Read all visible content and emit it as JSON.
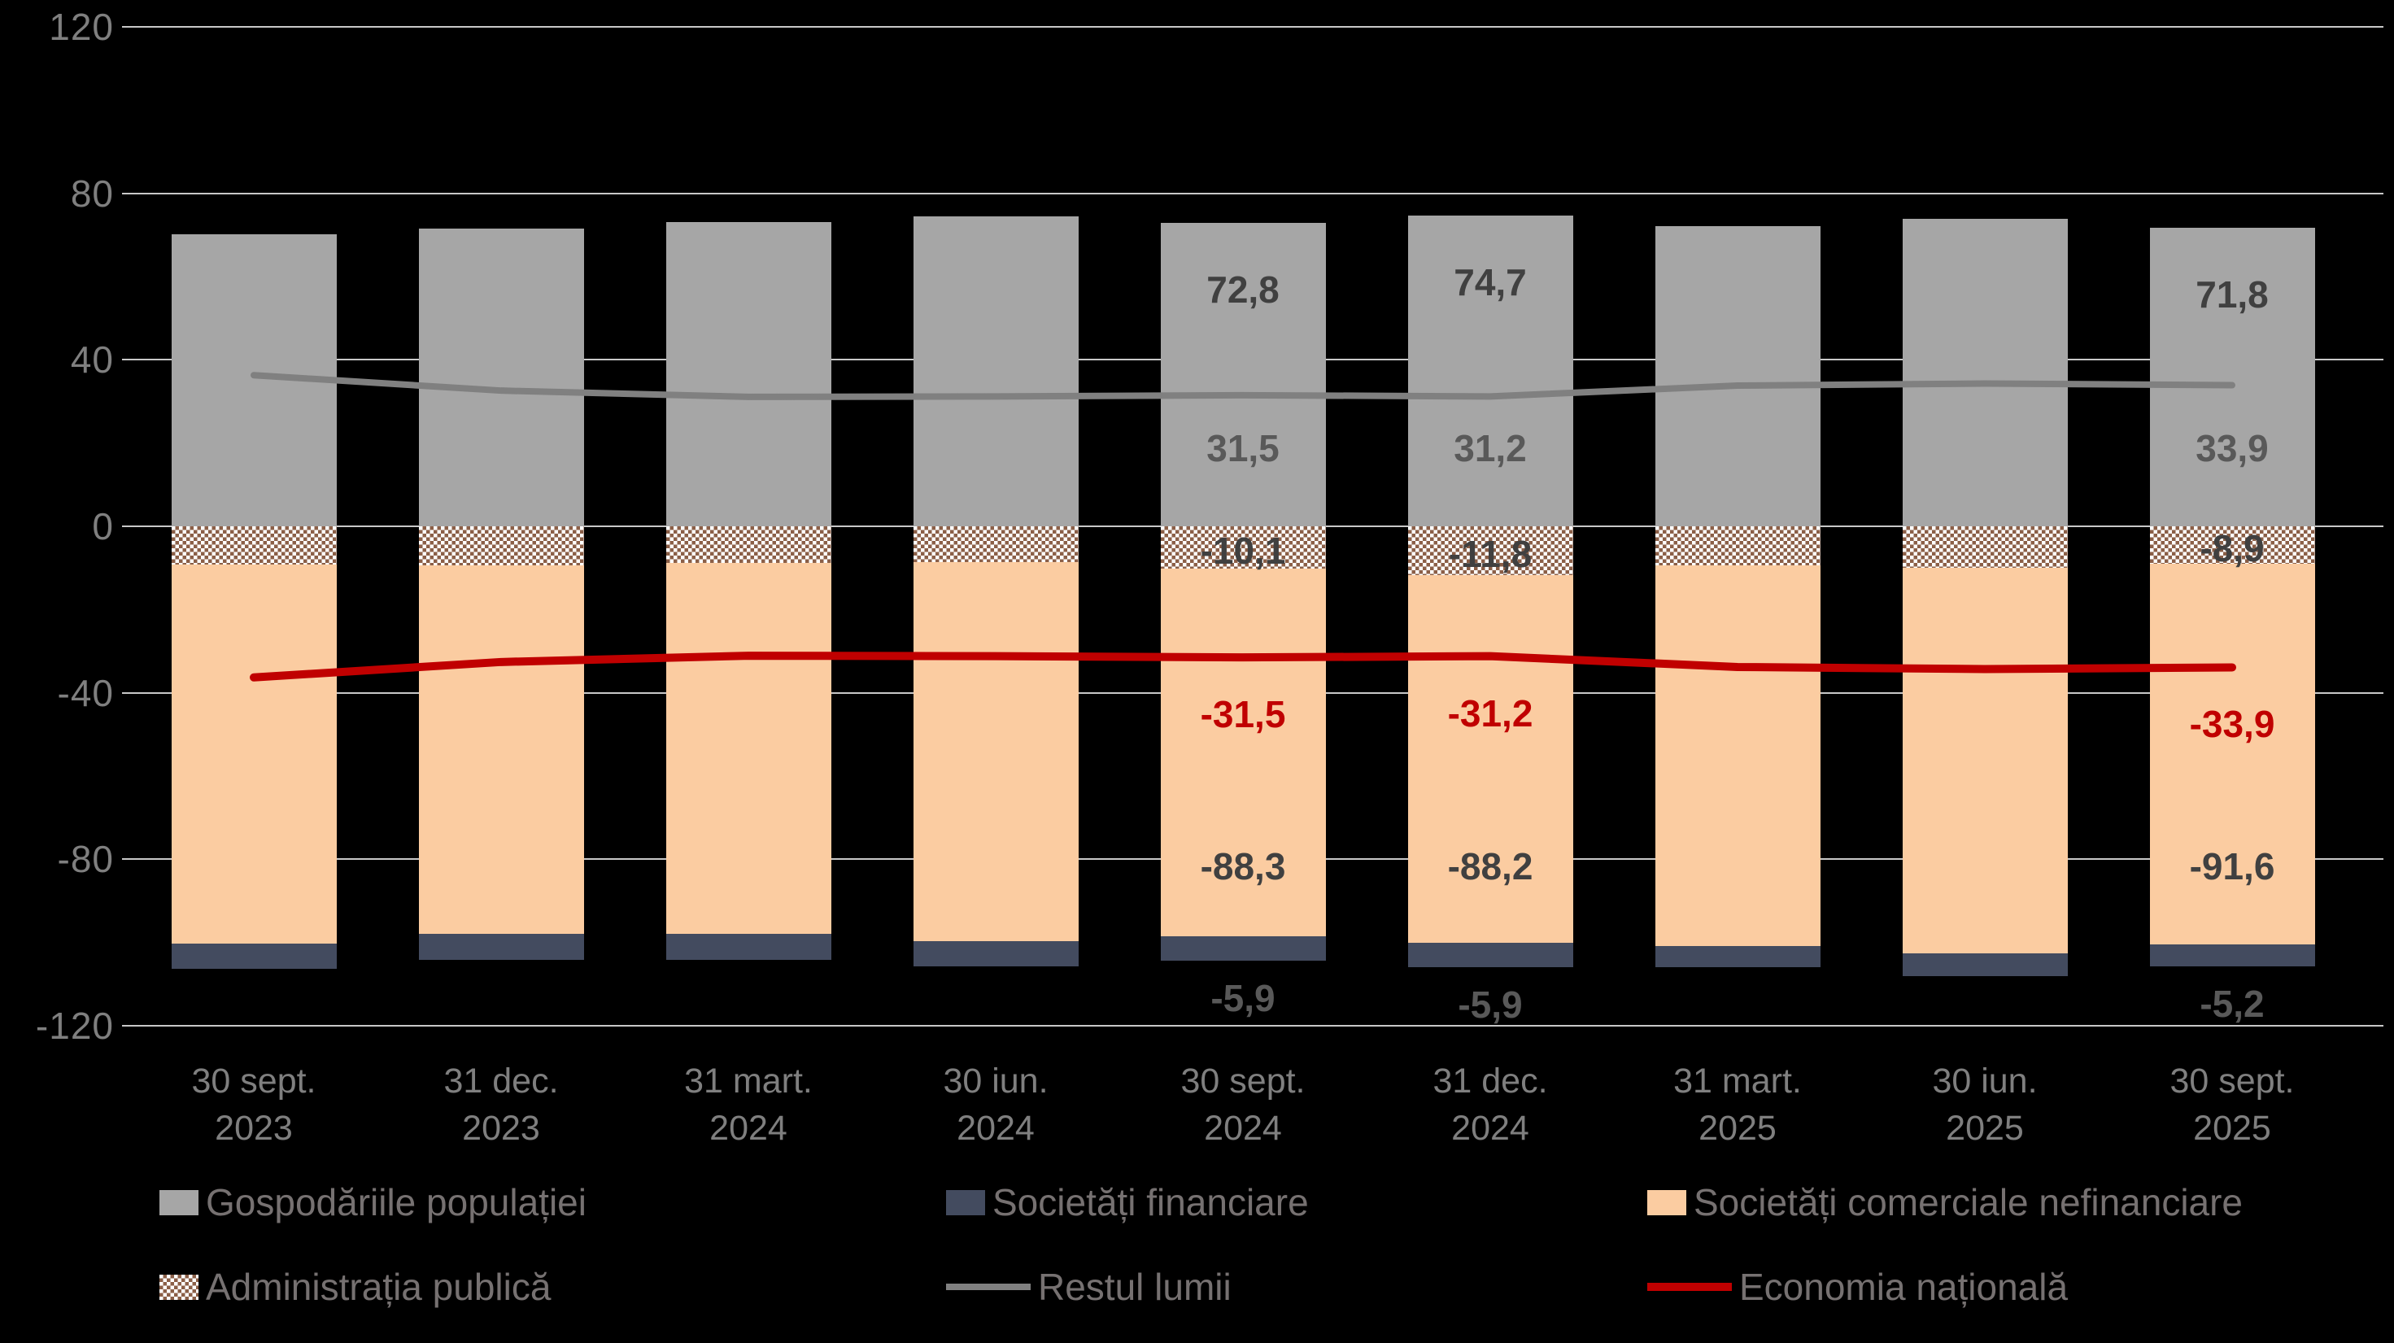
{
  "chart_data": {
    "type": "bar",
    "subtype": "stacked-bar-with-lines",
    "title": "",
    "xlabel": "",
    "ylabel": "",
    "ylim": [
      -120,
      120
    ],
    "grid": true,
    "decimal_separator": ",",
    "yticks": [
      {
        "label": "120",
        "value": 120
      },
      {
        "label": "80",
        "value": 80
      },
      {
        "label": "40",
        "value": 40
      },
      {
        "label": "0",
        "value": 0
      },
      {
        "label": "-40",
        "value": -40
      },
      {
        "label": "-80",
        "value": -80
      },
      {
        "label": "-120",
        "value": -120
      }
    ],
    "categories": [
      {
        "line1": "30 sept.",
        "line2": "2023"
      },
      {
        "line1": "31 dec.",
        "line2": "2023"
      },
      {
        "line1": "31 mart.",
        "line2": "2024"
      },
      {
        "line1": "30 iun.",
        "line2": "2024"
      },
      {
        "line1": "30 sept.",
        "line2": "2024"
      },
      {
        "line1": "31 dec.",
        "line2": "2024"
      },
      {
        "line1": "31 mart.",
        "line2": "2025"
      },
      {
        "line1": "30 iun.",
        "line2": "2025"
      },
      {
        "line1": "30 sept.",
        "line2": "2025"
      }
    ],
    "bar_series": [
      {
        "key": "gospodariile",
        "name": "Gospodăriile populației",
        "color": "#a6a6a6",
        "values": [
          70.1,
          71.5,
          73.0,
          74.5,
          72.8,
          74.7,
          72.1,
          73.8,
          71.8
        ],
        "shown_labels": [
          null,
          null,
          null,
          null,
          "72,8",
          "74,7",
          null,
          null,
          "71,8"
        ]
      },
      {
        "key": "administratia",
        "name": "Administrația publică",
        "color": "pattern",
        "values": [
          -9.2,
          -9.3,
          -8.7,
          -8.6,
          -10.1,
          -11.8,
          -9.4,
          -10.0,
          -8.9
        ],
        "shown_labels": [
          null,
          null,
          null,
          null,
          "-10,1",
          "-11,8",
          null,
          null,
          "-8,9"
        ]
      },
      {
        "key": "comerciale",
        "name": "Societăți comerciale nefinanciare",
        "color": "#fbcca1",
        "values": [
          -91.0,
          -88.6,
          -89.3,
          -91.0,
          -88.3,
          -88.2,
          -91.4,
          -92.6,
          -91.6
        ],
        "shown_labels": [
          null,
          null,
          null,
          null,
          "-88,3",
          "-88,2",
          null,
          null,
          "-91,6"
        ]
      },
      {
        "key": "financiare",
        "name": "Societăți financiare",
        "color": "#434b5f",
        "values": [
          -6.2,
          -6.2,
          -6.1,
          -6.1,
          -5.9,
          -5.9,
          -5.1,
          -5.5,
          -5.2
        ],
        "shown_labels": [
          null,
          null,
          null,
          null,
          "-5,9",
          "-5,9",
          null,
          null,
          "-5,2"
        ]
      }
    ],
    "line_series": [
      {
        "key": "restul",
        "name": "Restul lumii",
        "color": "#808080",
        "width": 8,
        "values": [
          36.3,
          32.6,
          31.1,
          31.2,
          31.5,
          31.2,
          33.8,
          34.3,
          33.9
        ],
        "shown_labels": [
          null,
          null,
          null,
          null,
          "31,5",
          "31,2",
          null,
          null,
          "33,9"
        ]
      },
      {
        "key": "economia",
        "name": "Economia națională",
        "color": "#c00000",
        "width": 10,
        "values": [
          -36.3,
          -32.6,
          -31.1,
          -31.2,
          -31.5,
          -31.2,
          -33.8,
          -34.3,
          -33.9
        ],
        "shown_labels": [
          null,
          null,
          null,
          null,
          "-31,5",
          "-31,2",
          null,
          null,
          "-33,9"
        ]
      }
    ],
    "values_estimated_for_category_indices": [
      0,
      1,
      2,
      3,
      6,
      7
    ],
    "legend_position": "bottom",
    "legend_rows": [
      [
        {
          "swatch": "fill",
          "series": "gospodariile",
          "label": "Gospodăriile populației"
        },
        {
          "swatch": "fill",
          "series": "financiare",
          "label": "Societăți financiare"
        },
        {
          "swatch": "fill",
          "series": "comerciale",
          "label": "Societăți comerciale nefinanciare"
        }
      ],
      [
        {
          "swatch": "pattern",
          "series": "administratia",
          "label": "Administrația publică"
        },
        {
          "swatch": "line",
          "series": "restul",
          "label": "Restul lumii"
        },
        {
          "swatch": "line",
          "series": "economia",
          "label": "Economia națională"
        }
      ]
    ]
  },
  "colors": {
    "background": "#000000",
    "gridline": "#dedede",
    "axis_text": "#7f7f7f",
    "legend_text": "#767171",
    "bar_gray": "#a6a6a6",
    "bar_peach": "#fbcca1",
    "bar_navy": "#434b5f",
    "pattern_brown": "#8b5f47",
    "line_gray": "#808080",
    "line_red": "#c00000",
    "label_dark": "#404040",
    "label_mid": "#595959",
    "label_red": "#c00000"
  }
}
